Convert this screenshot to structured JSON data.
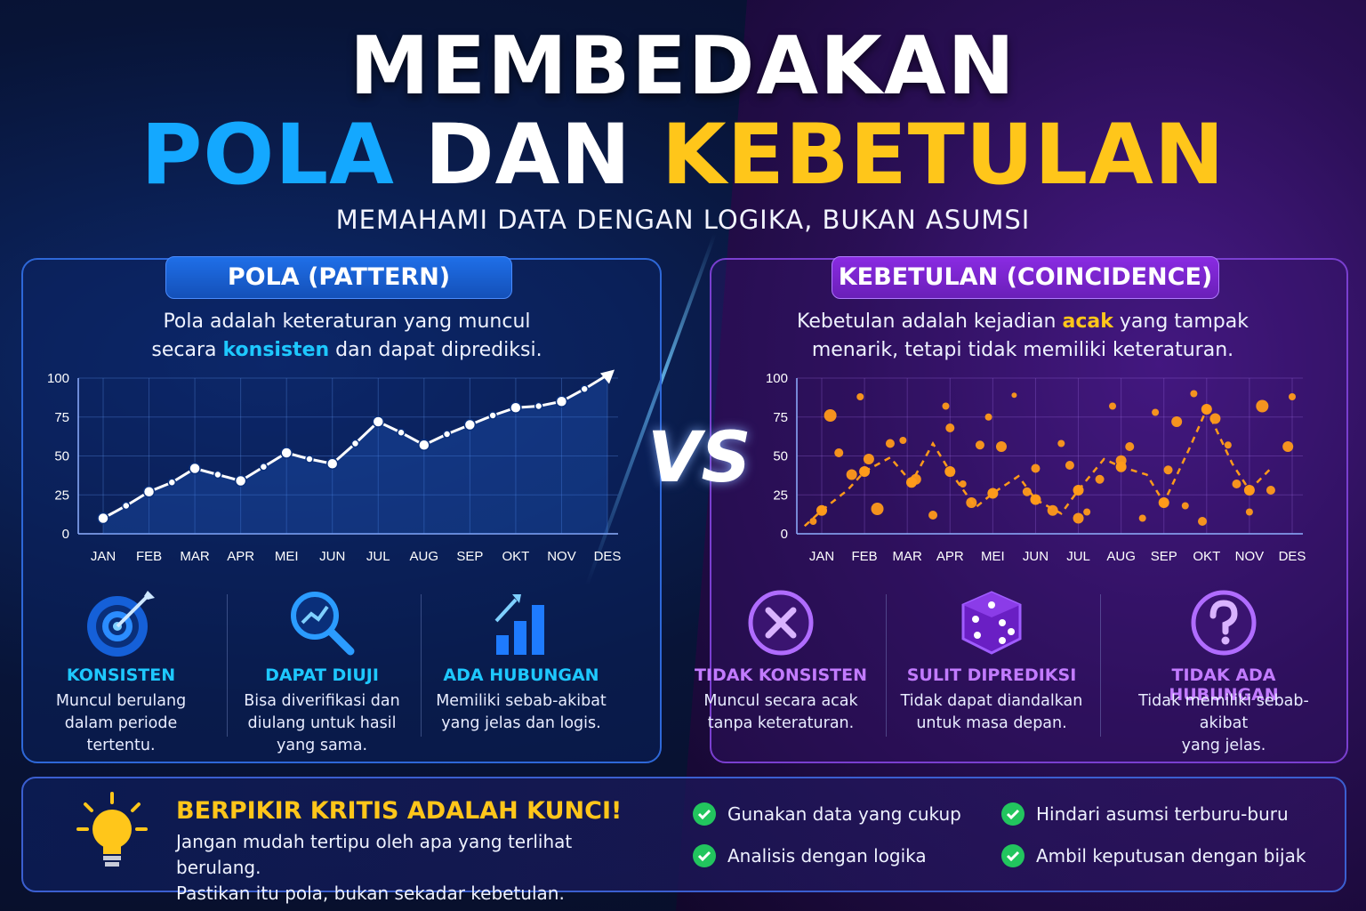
{
  "title": {
    "line1": "MEMBEDAKAN",
    "pola": "POLA",
    "dan": "DAN",
    "kebetulan": "KEBETULAN"
  },
  "subtitle": "MEMAHAMI DATA DENGAN LOGIKA, BUKAN ASUMSI",
  "vs": "VS",
  "left": {
    "heading": "POLA (PATTERN)",
    "desc_a": "Pola adalah keteraturan yang muncul",
    "desc_b": "secara ",
    "desc_hl": "konsisten",
    "desc_c": " dan dapat diprediksi.",
    "features": [
      {
        "name": "KONSISTEN",
        "line1": "Muncul berulang",
        "line2": "dalam periode tertentu.",
        "line3": ""
      },
      {
        "name": "DAPAT DIUJI",
        "line1": "Bisa diverifikasi dan",
        "line2": "diulang untuk hasil",
        "line3": "yang sama."
      },
      {
        "name": "ADA HUBUNGAN",
        "line1": "Memiliki sebab-akibat",
        "line2": "yang jelas dan logis.",
        "line3": ""
      }
    ]
  },
  "right": {
    "heading": "KEBETULAN (COINCIDENCE)",
    "desc_a": "Kebetulan adalah kejadian ",
    "desc_hl": "acak",
    "desc_b": " yang tampak",
    "desc_c": "menarik, tetapi tidak memiliki keteraturan.",
    "features": [
      {
        "name": "TIDAK KONSISTEN",
        "line1": "Muncul secara acak",
        "line2": "tanpa keteraturan.",
        "line3": ""
      },
      {
        "name": "SULIT DIPREDIKSI",
        "line1": "Tidak dapat diandalkan",
        "line2": "untuk masa depan.",
        "line3": ""
      },
      {
        "name": "TIDAK ADA HUBUNGAN",
        "line1": "Tidak memiliki sebab-akibat",
        "line2": "yang jelas.",
        "line3": ""
      }
    ]
  },
  "bottom": {
    "title": "BERPIKIR KRITIS ADALAH KUNCI!",
    "line1": "Jangan mudah tertipu oleh apa yang terlihat berulang.",
    "line2": "Pastikan itu pola, bukan sekadar kebetulan.",
    "tips": [
      "Gunakan data yang cukup",
      "Hindari asumsi terburu-buru",
      "Analisis dengan logika",
      "Ambil keputusan dengan bijak"
    ]
  },
  "colors": {
    "blue": "#14a8ff",
    "yellow": "#ffc61a",
    "purple": "#8a2be2",
    "orange": "#ff9a1a",
    "green": "#22c55e"
  },
  "chart_data": [
    {
      "type": "line",
      "categories": [
        "JAN",
        "FEB",
        "MAR",
        "APR",
        "MEI",
        "JUN",
        "JUL",
        "AUG",
        "SEP",
        "OKT",
        "NOV",
        "DES"
      ],
      "yticks": [
        "0",
        "25",
        "50",
        "75",
        "100"
      ],
      "ylim": [
        0,
        100
      ],
      "grid": true,
      "x": [
        0,
        0.5,
        1,
        1.5,
        2,
        2.5,
        3,
        3.5,
        4,
        4.5,
        5,
        5.5,
        6,
        6.5,
        7,
        7.5,
        8,
        8.5,
        9,
        9.5,
        10,
        10.5,
        11
      ],
      "values": [
        10,
        18,
        27,
        33,
        42,
        38,
        34,
        43,
        52,
        48,
        45,
        58,
        72,
        65,
        57,
        64,
        70,
        76,
        81,
        82,
        85,
        93,
        102
      ]
    },
    {
      "type": "scatter",
      "categories": [
        "JAN",
        "FEB",
        "MAR",
        "APR",
        "MEI",
        "JUN",
        "JUL",
        "AUG",
        "SEP",
        "OKT",
        "NOV",
        "DES"
      ],
      "yticks": [
        "0",
        "25",
        "50",
        "75",
        "100"
      ],
      "ylim": [
        0,
        100
      ],
      "grid": true,
      "line_x": [
        -0.4,
        0,
        0.6,
        1,
        1.6,
        2.1,
        2.6,
        3,
        3.6,
        4,
        4.6,
        5,
        5.6,
        6,
        6.6,
        7,
        7.6,
        8,
        8.6,
        9,
        9.6,
        10,
        10.5
      ],
      "line_y": [
        5,
        15,
        28,
        40,
        49,
        33,
        58,
        40,
        17,
        26,
        37,
        22,
        13,
        28,
        48,
        43,
        38,
        20,
        55,
        80,
        45,
        28,
        42
      ],
      "points_x": [
        -0.2,
        0.2,
        0.4,
        0.7,
        0.9,
        1.1,
        1.3,
        1.6,
        1.9,
        2.2,
        2.6,
        2.9,
        3.0,
        3.3,
        3.5,
        3.7,
        3.9,
        4.2,
        4.5,
        4.8,
        5.0,
        5.4,
        5.6,
        5.8,
        6.0,
        6.2,
        6.5,
        6.8,
        7.0,
        7.2,
        7.5,
        7.8,
        8.1,
        8.3,
        8.5,
        8.7,
        8.9,
        9.2,
        9.5,
        9.7,
        10.0,
        10.3,
        10.5,
        10.9,
        11.0
      ],
      "points_y": [
        8,
        76,
        52,
        38,
        88,
        48,
        16,
        58,
        60,
        35,
        12,
        82,
        68,
        32,
        20,
        57,
        75,
        56,
        89,
        27,
        42,
        15,
        58,
        44,
        10,
        14,
        35,
        82,
        47,
        56,
        10,
        78,
        41,
        72,
        18,
        90,
        8,
        74,
        57,
        32,
        14,
        82,
        28,
        56,
        88
      ],
      "points_r": [
        4,
        7,
        5,
        6,
        4,
        6,
        7,
        5,
        4,
        6,
        5,
        4,
        5,
        4,
        6,
        5,
        4,
        6,
        3,
        5,
        5,
        6,
        4,
        5,
        6,
        4,
        5,
        4,
        6,
        5,
        4,
        4,
        5,
        6,
        4,
        4,
        5,
        6,
        4,
        5,
        4,
        7,
        5,
        6,
        4
      ]
    }
  ]
}
